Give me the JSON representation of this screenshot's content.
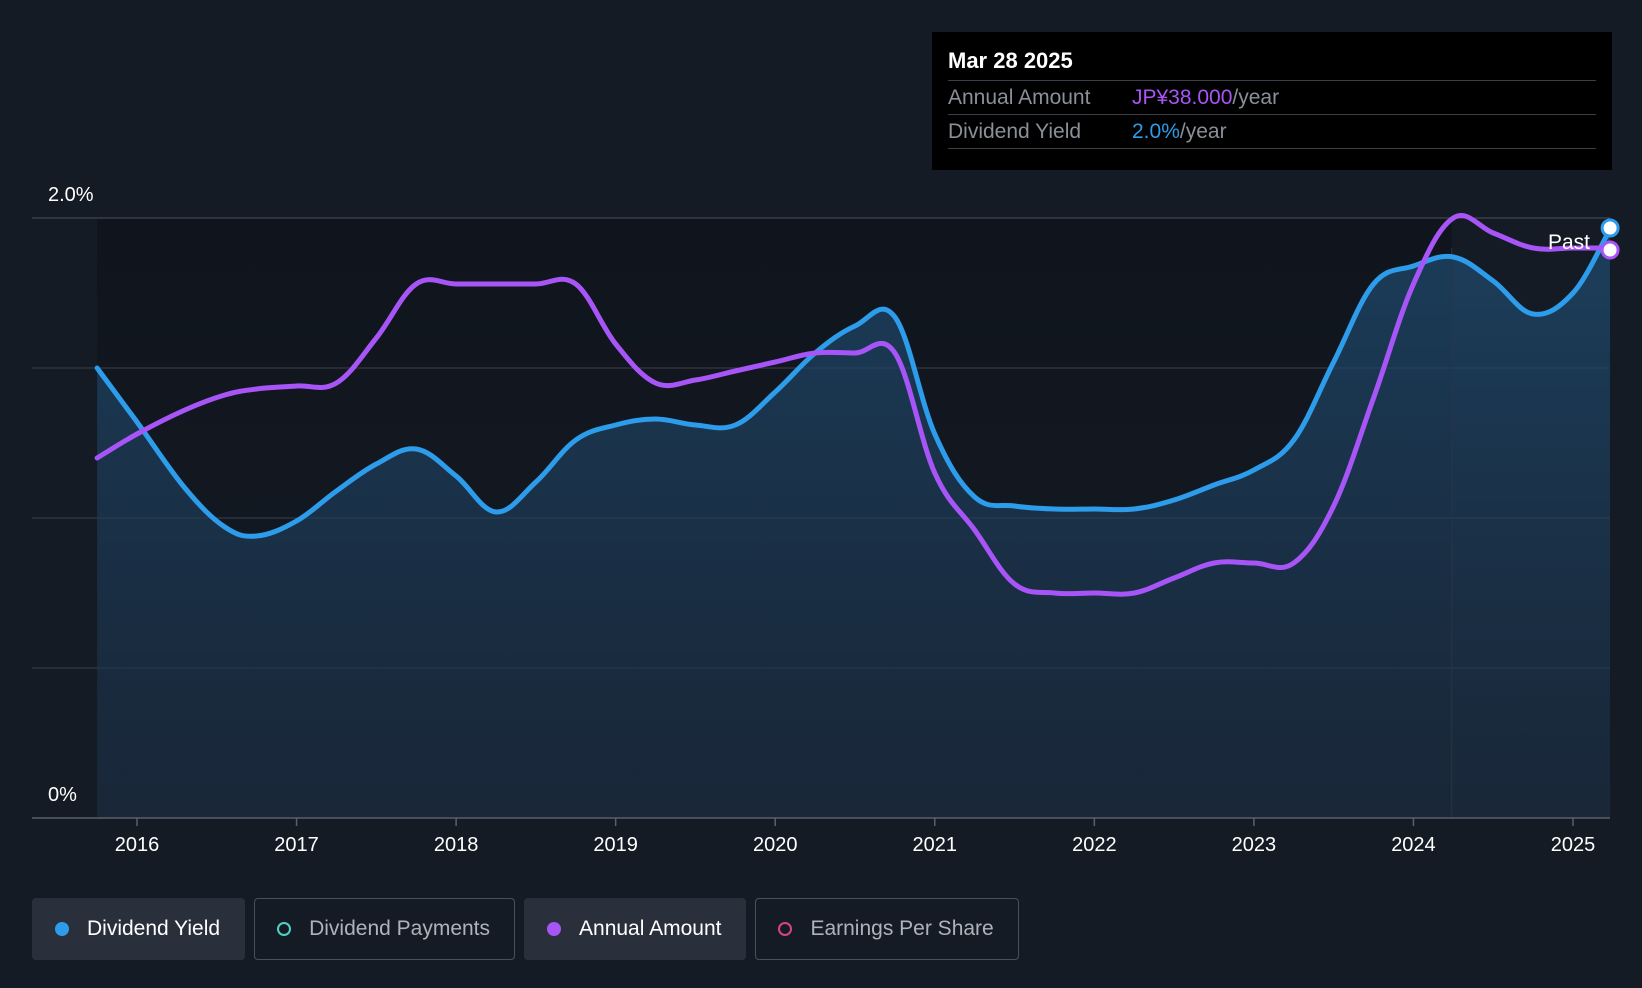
{
  "tooltip": {
    "date": "Mar 28 2025",
    "annual_label": "Annual Amount",
    "annual_value": "JP¥38.000",
    "annual_unit": "/year",
    "yield_label": "Dividend Yield",
    "yield_value": "2.0%",
    "yield_unit": "/year"
  },
  "past_label": "Past",
  "legend": [
    {
      "label": "Dividend Yield",
      "active": true,
      "color": "#2d9cea",
      "filled": true
    },
    {
      "label": "Dividend Payments",
      "active": false,
      "color": "#4fd1c5",
      "filled": false
    },
    {
      "label": "Annual Amount",
      "active": true,
      "color": "#a855f7",
      "filled": true
    },
    {
      "label": "Earnings Per Share",
      "active": false,
      "color": "#d6457f",
      "filled": false
    }
  ],
  "colors": {
    "background": "#151b25",
    "yield": "#2d9cea",
    "annual": "#a855f7",
    "grid": "#3a404a"
  },
  "chart_data": {
    "type": "line",
    "y_tick_labels": [
      "2.0%",
      "0%"
    ],
    "ylim": [
      0,
      2.0
    ],
    "xlim": [
      2015.35,
      2025.25
    ],
    "x_ticks": [
      "2016",
      "2017",
      "2018",
      "2019",
      "2020",
      "2021",
      "2022",
      "2023",
      "2024",
      "2025"
    ],
    "past_boundary_x": 2024.24,
    "series": [
      {
        "name": "Dividend Yield",
        "unit": "%",
        "points": [
          [
            2015.75,
            1.5
          ],
          [
            2016.0,
            1.32
          ],
          [
            2016.3,
            1.1
          ],
          [
            2016.55,
            0.97
          ],
          [
            2016.75,
            0.94
          ],
          [
            2017.0,
            0.99
          ],
          [
            2017.25,
            1.09
          ],
          [
            2017.5,
            1.18
          ],
          [
            2017.75,
            1.23
          ],
          [
            2018.0,
            1.14
          ],
          [
            2018.25,
            1.02
          ],
          [
            2018.5,
            1.12
          ],
          [
            2018.75,
            1.26
          ],
          [
            2019.0,
            1.31
          ],
          [
            2019.25,
            1.33
          ],
          [
            2019.5,
            1.31
          ],
          [
            2019.75,
            1.31
          ],
          [
            2020.0,
            1.42
          ],
          [
            2020.25,
            1.55
          ],
          [
            2020.5,
            1.64
          ],
          [
            2020.75,
            1.67
          ],
          [
            2021.0,
            1.28
          ],
          [
            2021.25,
            1.07
          ],
          [
            2021.5,
            1.04
          ],
          [
            2021.75,
            1.03
          ],
          [
            2022.0,
            1.03
          ],
          [
            2022.25,
            1.03
          ],
          [
            2022.5,
            1.06
          ],
          [
            2022.75,
            1.11
          ],
          [
            2023.0,
            1.16
          ],
          [
            2023.25,
            1.26
          ],
          [
            2023.5,
            1.52
          ],
          [
            2023.75,
            1.78
          ],
          [
            2024.0,
            1.84
          ],
          [
            2024.25,
            1.87
          ],
          [
            2024.5,
            1.79
          ],
          [
            2024.75,
            1.68
          ],
          [
            2025.0,
            1.75
          ],
          [
            2025.22,
            1.95
          ]
        ]
      },
      {
        "name": "Annual Amount",
        "unit": "JP¥",
        "points": [
          [
            2015.75,
            1.2
          ],
          [
            2016.0,
            1.28
          ],
          [
            2016.3,
            1.36
          ],
          [
            2016.55,
            1.41
          ],
          [
            2016.75,
            1.43
          ],
          [
            2017.0,
            1.44
          ],
          [
            2017.25,
            1.45
          ],
          [
            2017.5,
            1.6
          ],
          [
            2017.75,
            1.78
          ],
          [
            2018.0,
            1.78
          ],
          [
            2018.25,
            1.78
          ],
          [
            2018.5,
            1.78
          ],
          [
            2018.75,
            1.78
          ],
          [
            2019.0,
            1.58
          ],
          [
            2019.25,
            1.45
          ],
          [
            2019.5,
            1.46
          ],
          [
            2019.75,
            1.49
          ],
          [
            2020.0,
            1.52
          ],
          [
            2020.25,
            1.55
          ],
          [
            2020.5,
            1.55
          ],
          [
            2020.75,
            1.55
          ],
          [
            2021.0,
            1.15
          ],
          [
            2021.25,
            0.96
          ],
          [
            2021.5,
            0.78
          ],
          [
            2021.75,
            0.75
          ],
          [
            2022.0,
            0.75
          ],
          [
            2022.25,
            0.75
          ],
          [
            2022.5,
            0.8
          ],
          [
            2022.75,
            0.85
          ],
          [
            2023.0,
            0.85
          ],
          [
            2023.25,
            0.85
          ],
          [
            2023.5,
            1.04
          ],
          [
            2023.75,
            1.4
          ],
          [
            2024.0,
            1.78
          ],
          [
            2024.25,
            2.0
          ],
          [
            2024.5,
            1.95
          ],
          [
            2024.75,
            1.9
          ],
          [
            2025.0,
            1.9
          ],
          [
            2025.22,
            1.9
          ]
        ]
      }
    ]
  }
}
